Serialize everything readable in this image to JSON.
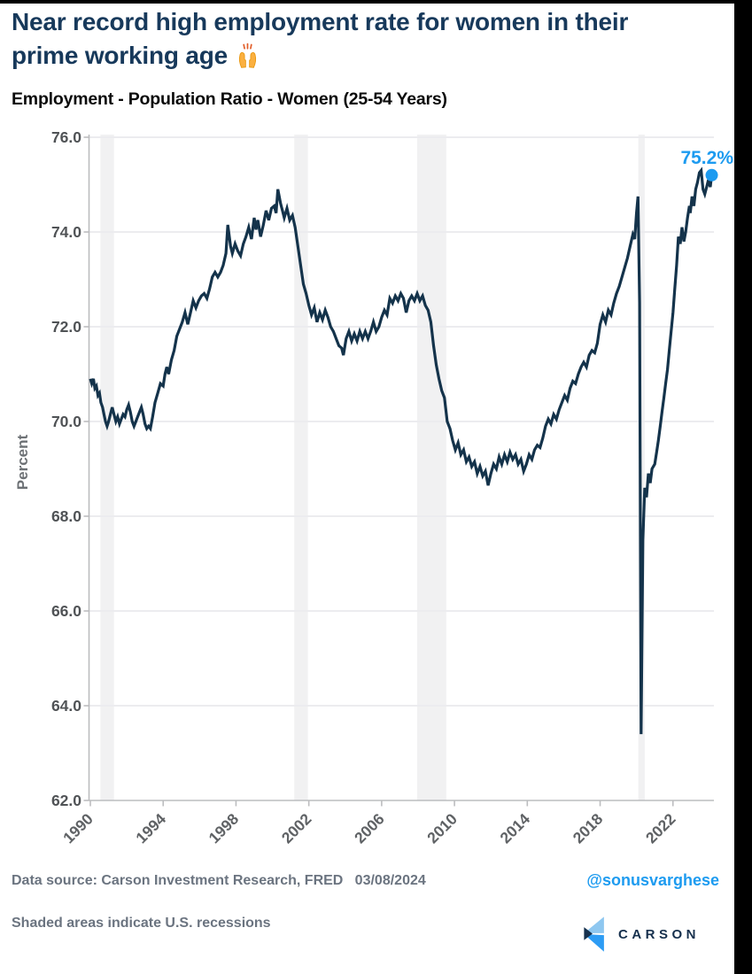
{
  "page": {
    "title_line1": "Near record high employment rate for women in their",
    "title_line2": "prime working age",
    "subtitle": "Employment - Population Ratio - Women (25-54 Years)"
  },
  "footer": {
    "source_line": "Data source: Carson Investment Research, FRED   03/08/2024",
    "note_line": "Shaded areas indicate U.S. recessions",
    "handle": "@sonusvarghese",
    "logo_text": "CARSON"
  },
  "colors": {
    "title_navy": "#17395b",
    "line_navy": "#14334b",
    "accent_blue": "#1d9bf0",
    "gridline": "#ececef",
    "recession_band": "#f1f1f2",
    "axis_gray": "#bcbdbf",
    "y_tick_text": "#505356",
    "x_tick_text": "#5f6265",
    "footer_gray": "#6b7480"
  },
  "chart_data": {
    "type": "line",
    "title": "Employment - Population Ratio - Women (25-54 Years)",
    "xlabel": "",
    "ylabel": "Percent",
    "ylim": [
      62.0,
      76.0
    ],
    "xlim": [
      1990,
      2024.25
    ],
    "grid": "horizontal",
    "legend": "none",
    "y_tick_values": [
      76,
      74,
      72,
      70,
      68,
      66,
      64,
      62
    ],
    "y_ticks": [
      "76.0",
      "74.0",
      "72.0",
      "70.0",
      "68.0",
      "66.0",
      "64.0",
      "62.0"
    ],
    "x_tick_years": [
      1990,
      1994,
      1998,
      2002,
      2006,
      2010,
      2014,
      2018,
      2022
    ],
    "x_ticks": [
      "1990",
      "1994",
      "1998",
      "2002",
      "2006",
      "2010",
      "2014",
      "2018",
      "2022"
    ],
    "recessions_note": "Shaded areas indicate U.S. recessions",
    "recessions": [
      [
        1990.55,
        1991.3
      ],
      [
        2001.2,
        2001.95
      ],
      [
        2007.95,
        2009.55
      ],
      [
        2020.1,
        2020.45
      ]
    ],
    "last_value_label": "75.2%",
    "last_point": {
      "year": 2024.13,
      "value": 75.2
    },
    "series": [
      {
        "name": "Employment-Population Ratio, Women 25-54 Years",
        "points": [
          [
            1990.0,
            70.9
          ],
          [
            1990.08,
            70.8
          ],
          [
            1990.17,
            70.9
          ],
          [
            1990.25,
            70.7
          ],
          [
            1990.33,
            70.75
          ],
          [
            1990.42,
            70.55
          ],
          [
            1990.5,
            70.6
          ],
          [
            1990.58,
            70.4
          ],
          [
            1990.67,
            70.3
          ],
          [
            1990.75,
            70.15
          ],
          [
            1990.83,
            70.0
          ],
          [
            1990.92,
            69.9
          ],
          [
            1991.0,
            70.0
          ],
          [
            1991.1,
            70.15
          ],
          [
            1991.2,
            70.3
          ],
          [
            1991.3,
            70.15
          ],
          [
            1991.4,
            70.0
          ],
          [
            1991.5,
            70.1
          ],
          [
            1991.6,
            69.95
          ],
          [
            1991.7,
            70.05
          ],
          [
            1991.8,
            70.15
          ],
          [
            1991.9,
            70.1
          ],
          [
            1992.0,
            70.25
          ],
          [
            1992.1,
            70.35
          ],
          [
            1992.2,
            70.2
          ],
          [
            1992.3,
            70.0
          ],
          [
            1992.4,
            69.9
          ],
          [
            1992.5,
            70.0
          ],
          [
            1992.6,
            70.1
          ],
          [
            1992.7,
            70.2
          ],
          [
            1992.8,
            70.3
          ],
          [
            1992.9,
            70.15
          ],
          [
            1993.0,
            69.95
          ],
          [
            1993.1,
            69.85
          ],
          [
            1993.2,
            69.9
          ],
          [
            1993.3,
            69.85
          ],
          [
            1993.42,
            70.1
          ],
          [
            1993.55,
            70.4
          ],
          [
            1993.7,
            70.6
          ],
          [
            1993.85,
            70.8
          ],
          [
            1994.0,
            70.75
          ],
          [
            1994.1,
            71.0
          ],
          [
            1994.2,
            71.15
          ],
          [
            1994.3,
            71.0
          ],
          [
            1994.45,
            71.3
          ],
          [
            1994.6,
            71.5
          ],
          [
            1994.75,
            71.8
          ],
          [
            1994.9,
            71.95
          ],
          [
            1995.05,
            72.1
          ],
          [
            1995.2,
            72.3
          ],
          [
            1995.35,
            72.05
          ],
          [
            1995.5,
            72.3
          ],
          [
            1995.65,
            72.55
          ],
          [
            1995.8,
            72.4
          ],
          [
            1995.95,
            72.55
          ],
          [
            1996.1,
            72.65
          ],
          [
            1996.25,
            72.7
          ],
          [
            1996.4,
            72.6
          ],
          [
            1996.55,
            72.8
          ],
          [
            1996.7,
            73.05
          ],
          [
            1996.85,
            73.15
          ],
          [
            1997.0,
            73.05
          ],
          [
            1997.15,
            73.15
          ],
          [
            1997.3,
            73.3
          ],
          [
            1997.45,
            73.55
          ],
          [
            1997.55,
            74.15
          ],
          [
            1997.7,
            73.7
          ],
          [
            1997.8,
            73.55
          ],
          [
            1997.95,
            73.75
          ],
          [
            1998.1,
            73.6
          ],
          [
            1998.25,
            73.5
          ],
          [
            1998.4,
            73.75
          ],
          [
            1998.55,
            73.9
          ],
          [
            1998.7,
            74.1
          ],
          [
            1998.85,
            73.85
          ],
          [
            1999.0,
            74.3
          ],
          [
            1999.1,
            74.05
          ],
          [
            1999.2,
            74.25
          ],
          [
            1999.35,
            73.9
          ],
          [
            1999.5,
            74.15
          ],
          [
            1999.65,
            74.45
          ],
          [
            1999.8,
            74.25
          ],
          [
            1999.95,
            74.5
          ],
          [
            2000.1,
            74.55
          ],
          [
            2000.2,
            74.4
          ],
          [
            2000.3,
            74.9
          ],
          [
            2000.45,
            74.6
          ],
          [
            2000.55,
            74.45
          ],
          [
            2000.65,
            74.3
          ],
          [
            2000.8,
            74.5
          ],
          [
            2000.95,
            74.25
          ],
          [
            2001.1,
            74.35
          ],
          [
            2001.25,
            74.1
          ],
          [
            2001.4,
            73.7
          ],
          [
            2001.55,
            73.3
          ],
          [
            2001.7,
            72.9
          ],
          [
            2001.85,
            72.7
          ],
          [
            2002.0,
            72.45
          ],
          [
            2002.15,
            72.25
          ],
          [
            2002.3,
            72.4
          ],
          [
            2002.45,
            72.1
          ],
          [
            2002.6,
            72.3
          ],
          [
            2002.75,
            72.15
          ],
          [
            2002.9,
            72.35
          ],
          [
            2003.05,
            72.2
          ],
          [
            2003.2,
            72.0
          ],
          [
            2003.35,
            71.9
          ],
          [
            2003.5,
            71.75
          ],
          [
            2003.65,
            71.6
          ],
          [
            2003.8,
            71.55
          ],
          [
            2003.9,
            71.4
          ],
          [
            2004.05,
            71.75
          ],
          [
            2004.2,
            71.9
          ],
          [
            2004.35,
            71.7
          ],
          [
            2004.5,
            71.85
          ],
          [
            2004.65,
            71.7
          ],
          [
            2004.8,
            71.9
          ],
          [
            2004.95,
            71.75
          ],
          [
            2005.1,
            71.9
          ],
          [
            2005.25,
            71.75
          ],
          [
            2005.4,
            71.9
          ],
          [
            2005.55,
            72.1
          ],
          [
            2005.7,
            71.9
          ],
          [
            2005.85,
            72.0
          ],
          [
            2006.0,
            72.2
          ],
          [
            2006.15,
            72.35
          ],
          [
            2006.3,
            72.25
          ],
          [
            2006.45,
            72.6
          ],
          [
            2006.6,
            72.5
          ],
          [
            2006.75,
            72.65
          ],
          [
            2006.9,
            72.55
          ],
          [
            2007.05,
            72.7
          ],
          [
            2007.2,
            72.6
          ],
          [
            2007.35,
            72.3
          ],
          [
            2007.5,
            72.55
          ],
          [
            2007.65,
            72.65
          ],
          [
            2007.8,
            72.55
          ],
          [
            2007.95,
            72.7
          ],
          [
            2008.1,
            72.55
          ],
          [
            2008.25,
            72.65
          ],
          [
            2008.4,
            72.45
          ],
          [
            2008.55,
            72.35
          ],
          [
            2008.7,
            72.1
          ],
          [
            2008.85,
            71.6
          ],
          [
            2009.0,
            71.2
          ],
          [
            2009.15,
            70.9
          ],
          [
            2009.3,
            70.65
          ],
          [
            2009.45,
            70.5
          ],
          [
            2009.6,
            70.0
          ],
          [
            2009.75,
            69.85
          ],
          [
            2009.9,
            69.6
          ],
          [
            2010.05,
            69.4
          ],
          [
            2010.2,
            69.55
          ],
          [
            2010.35,
            69.3
          ],
          [
            2010.5,
            69.4
          ],
          [
            2010.65,
            69.15
          ],
          [
            2010.8,
            69.25
          ],
          [
            2010.95,
            69.05
          ],
          [
            2011.1,
            69.15
          ],
          [
            2011.25,
            68.9
          ],
          [
            2011.4,
            69.05
          ],
          [
            2011.55,
            68.85
          ],
          [
            2011.7,
            68.95
          ],
          [
            2011.85,
            68.65
          ],
          [
            2012.0,
            68.9
          ],
          [
            2012.15,
            69.1
          ],
          [
            2012.3,
            69.0
          ],
          [
            2012.45,
            69.25
          ],
          [
            2012.6,
            69.1
          ],
          [
            2012.75,
            69.3
          ],
          [
            2012.9,
            69.15
          ],
          [
            2013.05,
            69.35
          ],
          [
            2013.2,
            69.2
          ],
          [
            2013.35,
            69.3
          ],
          [
            2013.5,
            69.1
          ],
          [
            2013.65,
            69.2
          ],
          [
            2013.8,
            68.95
          ],
          [
            2013.95,
            69.1
          ],
          [
            2014.1,
            69.3
          ],
          [
            2014.25,
            69.2
          ],
          [
            2014.4,
            69.4
          ],
          [
            2014.55,
            69.5
          ],
          [
            2014.7,
            69.45
          ],
          [
            2014.85,
            69.65
          ],
          [
            2015.0,
            69.9
          ],
          [
            2015.15,
            70.05
          ],
          [
            2015.3,
            69.95
          ],
          [
            2015.45,
            70.15
          ],
          [
            2015.6,
            70.05
          ],
          [
            2015.75,
            70.25
          ],
          [
            2015.9,
            70.4
          ],
          [
            2016.05,
            70.55
          ],
          [
            2016.2,
            70.45
          ],
          [
            2016.35,
            70.7
          ],
          [
            2016.5,
            70.85
          ],
          [
            2016.65,
            70.8
          ],
          [
            2016.8,
            71.0
          ],
          [
            2016.95,
            71.15
          ],
          [
            2017.1,
            71.25
          ],
          [
            2017.25,
            71.15
          ],
          [
            2017.4,
            71.4
          ],
          [
            2017.55,
            71.5
          ],
          [
            2017.7,
            71.45
          ],
          [
            2017.85,
            71.65
          ],
          [
            2018.0,
            72.05
          ],
          [
            2018.15,
            72.25
          ],
          [
            2018.3,
            72.1
          ],
          [
            2018.45,
            72.35
          ],
          [
            2018.6,
            72.25
          ],
          [
            2018.75,
            72.5
          ],
          [
            2018.9,
            72.7
          ],
          [
            2019.05,
            72.85
          ],
          [
            2019.2,
            73.05
          ],
          [
            2019.35,
            73.25
          ],
          [
            2019.5,
            73.45
          ],
          [
            2019.65,
            73.7
          ],
          [
            2019.8,
            73.95
          ],
          [
            2019.9,
            73.85
          ],
          [
            2020.0,
            74.4
          ],
          [
            2020.08,
            74.75
          ],
          [
            2020.17,
            72.5
          ],
          [
            2020.25,
            63.4
          ],
          [
            2020.35,
            67.5
          ],
          [
            2020.45,
            68.6
          ],
          [
            2020.55,
            68.4
          ],
          [
            2020.65,
            68.9
          ],
          [
            2020.75,
            68.7
          ],
          [
            2020.85,
            69.0
          ],
          [
            2021.0,
            69.1
          ],
          [
            2021.1,
            69.35
          ],
          [
            2021.2,
            69.6
          ],
          [
            2021.3,
            69.9
          ],
          [
            2021.4,
            70.2
          ],
          [
            2021.5,
            70.5
          ],
          [
            2021.6,
            70.8
          ],
          [
            2021.7,
            71.1
          ],
          [
            2021.8,
            71.5
          ],
          [
            2021.9,
            71.9
          ],
          [
            2022.0,
            72.3
          ],
          [
            2022.1,
            72.8
          ],
          [
            2022.2,
            73.3
          ],
          [
            2022.3,
            73.9
          ],
          [
            2022.4,
            73.75
          ],
          [
            2022.5,
            74.1
          ],
          [
            2022.6,
            73.8
          ],
          [
            2022.7,
            74.0
          ],
          [
            2022.8,
            74.3
          ],
          [
            2022.9,
            74.55
          ],
          [
            2022.95,
            74.4
          ],
          [
            2023.05,
            74.75
          ],
          [
            2023.15,
            74.55
          ],
          [
            2023.25,
            74.9
          ],
          [
            2023.35,
            75.05
          ],
          [
            2023.45,
            75.25
          ],
          [
            2023.55,
            75.3
          ],
          [
            2023.65,
            74.9
          ],
          [
            2023.75,
            74.8
          ],
          [
            2023.85,
            74.95
          ],
          [
            2023.95,
            75.1
          ],
          [
            2024.05,
            74.95
          ],
          [
            2024.13,
            75.2
          ]
        ]
      }
    ]
  }
}
